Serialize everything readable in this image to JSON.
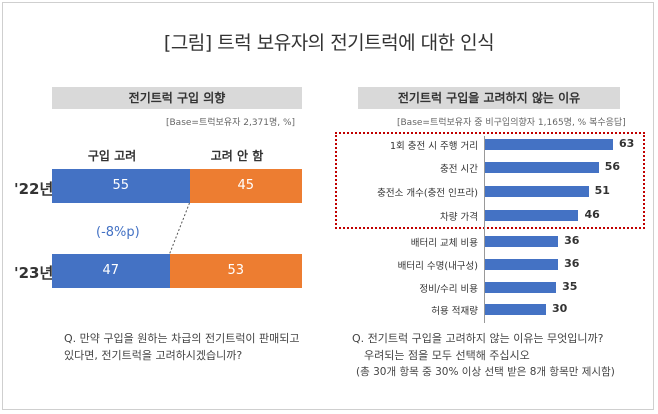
{
  "main_title": "[그림] 트럭 보유자의 전기트럭에 대한 인식",
  "chart_data": [
    {
      "type": "bar",
      "orientation": "horizontal-stacked",
      "title": "전기트럭 구입 의향",
      "base_note": "[Base=트럭보유자 2,371명, %]",
      "categories": [
        "'22년",
        "'23년"
      ],
      "series": [
        {
          "name": "구입 고려",
          "color": "#4472c4",
          "values": [
            55,
            47
          ]
        },
        {
          "name": "고려 안 함",
          "color": "#ed7d31",
          "values": [
            45,
            53
          ]
        }
      ],
      "annotation": "(-8%p)",
      "question": "Q. 만약 구입을 원하는 차급의 전기트럭이 판매되고 있다면, 전기트럭을 고려하시겠습니까?"
    },
    {
      "type": "bar",
      "orientation": "horizontal",
      "title": "전기트럭 구입을 고려하지 않는 이유",
      "base_note": "[Base=트럭보유자 중 비구입의향자 1,165명, % 복수응답]",
      "categories": [
        "1회 충전 시 주행 거리",
        "충전 시간",
        "충전소 개수(충전 인프라)",
        "차량 가격",
        "배터리 교체 비용",
        "배터리 수명(내구성)",
        "정비/수리 비용",
        "허용 적재량"
      ],
      "values": [
        63,
        56,
        51,
        46,
        36,
        36,
        35,
        30
      ],
      "xlim": [
        0,
        70
      ],
      "highlighted_top": 4,
      "question_line1": "Q. 전기트럭 구입을 고려하지 않는 이유는 무엇입니까?",
      "question_line2": "우려되는 점을 모두 선택해 주십시오",
      "question_line3": "(총 30개 항목 중 30% 이상 선택 받은 8개 항목만 제시함)"
    }
  ]
}
